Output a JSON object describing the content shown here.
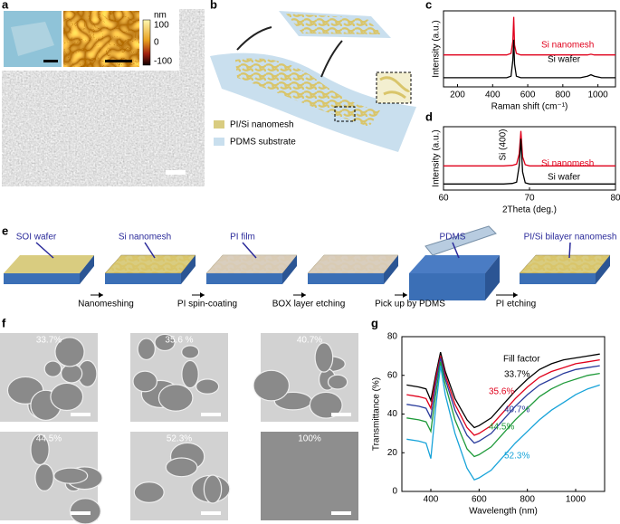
{
  "panel_labels": [
    "a",
    "b",
    "c",
    "d",
    "e",
    "f",
    "g"
  ],
  "panel_a": {
    "colorbar_unit": "nm",
    "colorbar_ticks": [
      "100",
      "0",
      "-100"
    ]
  },
  "panel_b": {
    "legend": [
      "PI/Si nanomesh",
      "PDMS substrate"
    ]
  },
  "panel_e": {
    "stages": [
      "SOI wafer",
      "Si nanomesh",
      "PI film",
      "PDMS",
      "PI/Si bilayer nanomesh"
    ],
    "steps": [
      "Nanomeshing",
      "PI spin-coating",
      "BOX layer etching",
      "Pick up by PDMS",
      "PI etching"
    ]
  },
  "panel_f": {
    "fill_factors": [
      "33.7%",
      "35.6 %",
      "40.7%",
      "44.5%",
      "52.3%",
      "100%"
    ]
  },
  "chart_data": [
    {
      "type": "line",
      "xlabel": "Raman shift (cm⁻¹)",
      "ylabel": "Intensity (a.u.)",
      "x": [
        120,
        200,
        300,
        400,
        480,
        505,
        515,
        520,
        525,
        535,
        560,
        650,
        800,
        900,
        940,
        960,
        980,
        1020,
        1100
      ],
      "xlim": [
        120,
        1100
      ],
      "xticks": [
        200,
        400,
        600,
        800,
        1000
      ],
      "ylim": [
        0,
        1
      ],
      "series": [
        {
          "name": "Si nanomesh",
          "color": "#e0001b",
          "values": [
            0.42,
            0.42,
            0.42,
            0.42,
            0.42,
            0.44,
            0.6,
            0.92,
            0.55,
            0.44,
            0.42,
            0.42,
            0.42,
            0.42,
            0.42,
            0.43,
            0.42,
            0.42,
            0.42
          ]
        },
        {
          "name": "Si wafer",
          "color": "#000000",
          "values": [
            0.12,
            0.12,
            0.12,
            0.12,
            0.12,
            0.14,
            0.35,
            0.62,
            0.3,
            0.14,
            0.12,
            0.12,
            0.12,
            0.12,
            0.14,
            0.16,
            0.14,
            0.12,
            0.12
          ]
        }
      ]
    },
    {
      "type": "line",
      "xlabel": "2Theta (deg.)",
      "ylabel": "Intensity (a.u.)",
      "annotation": "Si (400)",
      "x": [
        60,
        62,
        64,
        66,
        67,
        68,
        68.5,
        68.8,
        69,
        69.2,
        69.5,
        70,
        72,
        74,
        76,
        78,
        80
      ],
      "xlim": [
        60,
        80
      ],
      "xticks": [
        60,
        70,
        80
      ],
      "ylim": [
        0,
        1.05
      ],
      "series": [
        {
          "name": "Si nanomesh",
          "color": "#e0001b",
          "values": [
            0.4,
            0.4,
            0.4,
            0.4,
            0.4,
            0.41,
            0.43,
            0.6,
            0.98,
            0.55,
            0.42,
            0.4,
            0.4,
            0.4,
            0.4,
            0.4,
            0.4
          ]
        },
        {
          "name": "Si wafer",
          "color": "#000000",
          "values": [
            0.1,
            0.1,
            0.1,
            0.1,
            0.1,
            0.11,
            0.13,
            0.4,
            0.85,
            0.3,
            0.12,
            0.1,
            0.1,
            0.1,
            0.1,
            0.1,
            0.1
          ]
        }
      ]
    },
    {
      "type": "line",
      "xlabel": "Wavelength (nm)",
      "ylabel": "Transmittance (%)",
      "legend_title": "Fill factor",
      "x": [
        300,
        350,
        380,
        400,
        420,
        440,
        460,
        500,
        550,
        580,
        600,
        650,
        700,
        750,
        800,
        850,
        900,
        950,
        1000,
        1050,
        1100
      ],
      "xlim": [
        280,
        1120
      ],
      "xticks": [
        400,
        600,
        800,
        1000
      ],
      "ylim": [
        0,
        80
      ],
      "yticks": [
        0,
        20,
        40,
        60,
        80
      ],
      "series": [
        {
          "name": "33.7%",
          "color": "#000000",
          "values": [
            55,
            54,
            53,
            47,
            60,
            72,
            62,
            48,
            37,
            33,
            34,
            38,
            45,
            52,
            58,
            63,
            66,
            68,
            69,
            70,
            71
          ]
        },
        {
          "name": "35.6%",
          "color": "#e0001b",
          "values": [
            50,
            49,
            48,
            43,
            58,
            70,
            60,
            45,
            33,
            29,
            30,
            34,
            41,
            48,
            54,
            59,
            62,
            64,
            66,
            67,
            68
          ]
        },
        {
          "name": "40.7%",
          "color": "#2a3c9c",
          "values": [
            45,
            44,
            43,
            38,
            55,
            69,
            58,
            42,
            29,
            25,
            26,
            30,
            37,
            44,
            50,
            55,
            58,
            61,
            63,
            64,
            65
          ]
        },
        {
          "name": "44.5%",
          "color": "#1f9a3a",
          "values": [
            38,
            37,
            36,
            31,
            50,
            67,
            55,
            37,
            22,
            18,
            19,
            23,
            30,
            37,
            43,
            49,
            53,
            56,
            58,
            60,
            61
          ]
        },
        {
          "name": "52.3%",
          "color": "#17a3d9",
          "values": [
            27,
            26,
            25,
            17,
            43,
            65,
            50,
            30,
            12,
            6,
            7,
            11,
            18,
            25,
            31,
            37,
            42,
            46,
            50,
            53,
            55
          ]
        }
      ]
    }
  ]
}
